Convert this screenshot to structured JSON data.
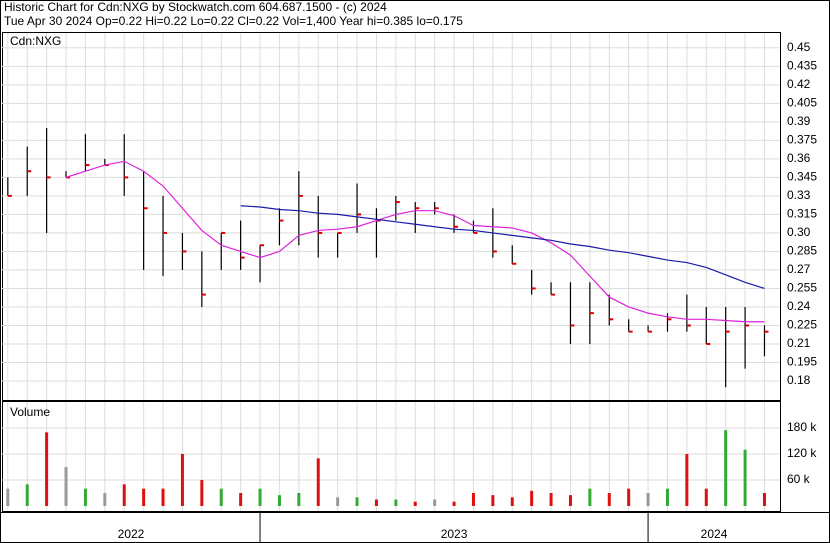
{
  "chart_data": [
    {
      "type": "ohlc",
      "title": "Historic Chart for Cdn:NXG by Stockwatch.com 604.687.1500 - (c) 2024",
      "subtitle": "Tue Apr 30 2024  Op=0.22  Hi=0.22  Lo=0.22  Cl=0.22  Vol=1,400  Year hi=0.385  lo=0.175",
      "label": "Cdn:NXG",
      "x": [
        2022.35,
        2022.4,
        2022.45,
        2022.5,
        2022.55,
        2022.6,
        2022.65,
        2022.7,
        2022.75,
        2022.8,
        2022.85,
        2022.9,
        2022.95,
        2023.0,
        2023.05,
        2023.1,
        2023.15,
        2023.2,
        2023.25,
        2023.3,
        2023.35,
        2023.4,
        2023.45,
        2023.5,
        2023.55,
        2023.6,
        2023.65,
        2023.7,
        2023.75,
        2023.8,
        2023.85,
        2023.9,
        2023.95,
        2024.0,
        2024.05,
        2024.1,
        2024.15,
        2024.2,
        2024.25,
        2024.3
      ],
      "xlim": [
        2022.335,
        2024.34
      ],
      "high": [
        0.345,
        0.37,
        0.385,
        0.35,
        0.38,
        0.36,
        0.38,
        0.35,
        0.33,
        0.3,
        0.285,
        0.3,
        0.31,
        0.29,
        0.32,
        0.35,
        0.33,
        0.3,
        0.34,
        0.32,
        0.33,
        0.325,
        0.325,
        0.315,
        0.31,
        0.32,
        0.29,
        0.27,
        0.26,
        0.26,
        0.26,
        0.25,
        0.23,
        0.225,
        0.235,
        0.25,
        0.24,
        0.24,
        0.24,
        0.225
      ],
      "low": [
        0.33,
        0.33,
        0.3,
        0.345,
        0.35,
        0.355,
        0.33,
        0.27,
        0.265,
        0.27,
        0.24,
        0.27,
        0.27,
        0.26,
        0.29,
        0.29,
        0.28,
        0.28,
        0.3,
        0.28,
        0.31,
        0.3,
        0.315,
        0.3,
        0.3,
        0.28,
        0.275,
        0.25,
        0.25,
        0.21,
        0.21,
        0.225,
        0.22,
        0.22,
        0.22,
        0.22,
        0.21,
        0.175,
        0.19,
        0.2
      ],
      "close": [
        0.33,
        0.35,
        0.345,
        0.345,
        0.355,
        0.355,
        0.345,
        0.32,
        0.3,
        0.285,
        0.25,
        0.3,
        0.28,
        0.29,
        0.31,
        0.33,
        0.3,
        0.3,
        0.315,
        0.31,
        0.325,
        0.32,
        0.32,
        0.305,
        0.3,
        0.285,
        0.275,
        0.255,
        0.25,
        0.225,
        0.235,
        0.23,
        0.22,
        0.22,
        0.23,
        0.225,
        0.21,
        0.22,
        0.225,
        0.22
      ],
      "series": [
        {
          "color": "#dd22dd",
          "values": [
            null,
            null,
            null,
            0.345,
            0.35,
            0.355,
            0.358,
            0.35,
            0.338,
            0.32,
            0.302,
            0.29,
            0.285,
            0.28,
            0.285,
            0.298,
            0.302,
            0.303,
            0.305,
            0.31,
            0.315,
            0.318,
            0.318,
            0.314,
            0.306,
            0.305,
            0.304,
            0.3,
            0.292,
            0.282,
            0.265,
            0.248,
            0.24,
            0.235,
            0.232,
            0.23,
            0.23,
            0.229,
            0.228,
            0.228
          ]
        },
        {
          "color": "#1a1aaa",
          "values": [
            null,
            null,
            null,
            null,
            null,
            null,
            null,
            null,
            null,
            null,
            null,
            null,
            0.322,
            0.321,
            0.319,
            0.318,
            0.316,
            0.315,
            0.313,
            0.311,
            0.309,
            0.307,
            0.305,
            0.303,
            0.302,
            0.3,
            0.298,
            0.296,
            0.294,
            0.291,
            0.289,
            0.286,
            0.284,
            0.281,
            0.278,
            0.276,
            0.272,
            0.266,
            0.26,
            0.255
          ]
        }
      ],
      "ylim": [
        0.1646,
        0.462
      ],
      "yticks": [
        0.18,
        0.195,
        0.21,
        0.225,
        0.24,
        0.255,
        0.27,
        0.285,
        {
          "value": 0.3,
          "label": "0.30"
        },
        0.315,
        0.33,
        0.345,
        0.36,
        0.375,
        0.39,
        0.405,
        0.42,
        0.435,
        0.45
      ],
      "grid": true
    },
    {
      "type": "bar",
      "label": "Volume",
      "values": [
        40000,
        50000,
        170000,
        90000,
        40000,
        30000,
        50000,
        40000,
        40000,
        120000,
        60000,
        40000,
        30000,
        40000,
        25000,
        30000,
        110000,
        20000,
        20000,
        15000,
        15000,
        10000,
        15000,
        10000,
        30000,
        25000,
        20000,
        35000,
        30000,
        25000,
        40000,
        30000,
        40000,
        30000,
        40000,
        120000,
        40000,
        175000,
        130000,
        30000
      ],
      "colors": {
        "up": "#33aa33",
        "down": "#dd1111",
        "flat": "#999999"
      },
      "ylim": [
        0,
        240000
      ],
      "yticks": [
        {
          "value": 60000,
          "label": "60 k"
        },
        {
          "value": 120000,
          "label": "120 k"
        },
        {
          "value": 180000,
          "label": "180 k"
        }
      ],
      "xticks": [
        2023,
        2024
      ],
      "x_labels": [
        "2022",
        "2023",
        "2024"
      ]
    }
  ]
}
